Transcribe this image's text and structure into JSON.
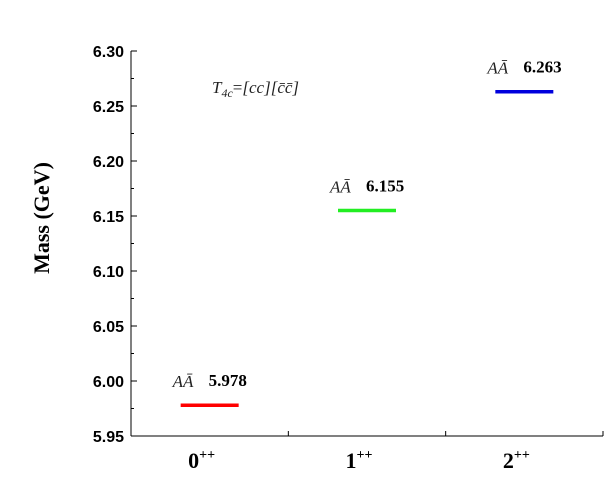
{
  "chart_data": {
    "type": "scatter",
    "marker": "horizontal-bar",
    "title": "",
    "xlabel": "",
    "ylabel": "Mass (GeV)",
    "ylim": [
      5.95,
      6.3
    ],
    "yticks": [
      "5.95",
      "6.00",
      "6.05",
      "6.10",
      "6.15",
      "6.20",
      "6.25",
      "6.30"
    ],
    "categories": [
      {
        "base": "0",
        "sup": "++"
      },
      {
        "base": "1",
        "sup": "++"
      },
      {
        "base": "2",
        "sup": "++"
      }
    ],
    "points": [
      {
        "category": 0,
        "value": 5.978,
        "label": "5.978",
        "config": "AĀ",
        "color": "#ff0000"
      },
      {
        "category": 1,
        "value": 6.155,
        "label": "6.155",
        "config": "AĀ",
        "color": "#22ee22"
      },
      {
        "category": 2,
        "value": 6.263,
        "label": "6.263",
        "config": "AĀ",
        "color": "#0000dd"
      }
    ],
    "annotation": {
      "main": "T",
      "sub": "4c",
      "eq": "=",
      "expr": "[cc][c̄c̄]"
    },
    "grid": false,
    "legend": "none"
  }
}
